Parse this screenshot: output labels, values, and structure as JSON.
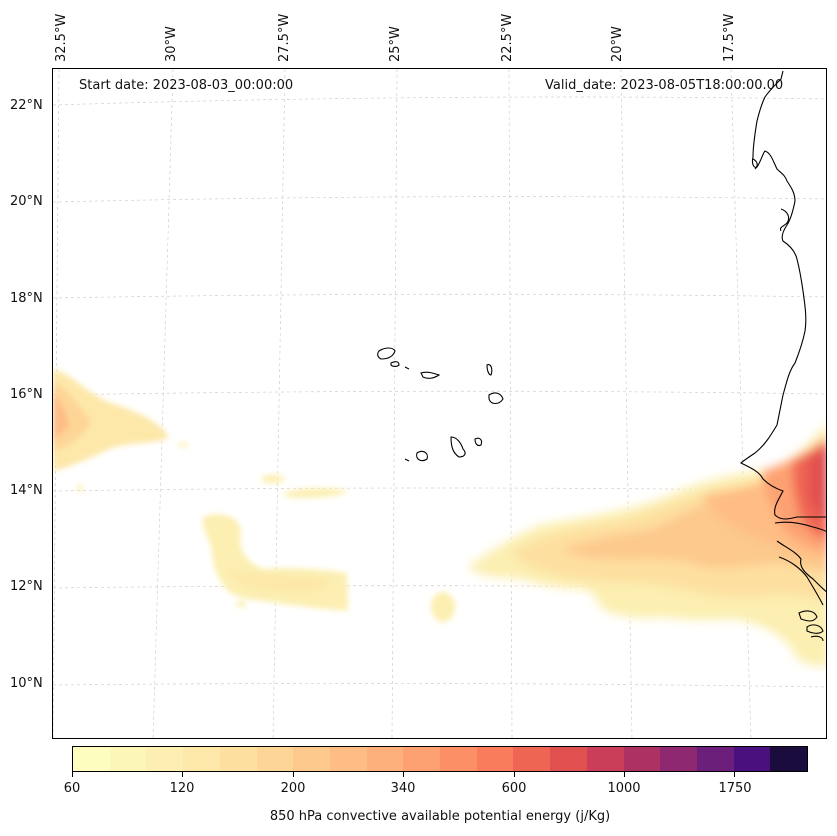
{
  "map": {
    "start_date": "Start date: 2023-08-03_00:00:00",
    "valid_date": "Valid_date: 2023-08-05T18:00:00.00",
    "longitude_labels": [
      "32.5°W",
      "30°W",
      "27.5°W",
      "25°W",
      "22.5°W",
      "20°W",
      "17.5°W"
    ],
    "latitude_labels": [
      "22°N",
      "20°N",
      "18°N",
      "16°N",
      "14°N",
      "12°N",
      "10°N"
    ],
    "gridlines": true,
    "coastline_color": "#000000",
    "background_color": "#ffffff"
  },
  "colorbar": {
    "title": "850 hPa convective available potential energy (j/Kg)",
    "tick_labels": [
      "60",
      "120",
      "200",
      "340",
      "600",
      "1000",
      "1750"
    ],
    "colors": [
      "#fcfdbf",
      "#fcf6b8",
      "#fcefb1",
      "#fde8a9",
      "#fde0a0",
      "#fdd597",
      "#fec98d",
      "#febd84",
      "#fdb07b",
      "#fda172",
      "#fd8f67",
      "#f97c5d",
      "#ef6553",
      "#e0504f",
      "#cb3e5a",
      "#ae3163",
      "#8e2870",
      "#6b1e7a",
      "#4a117e",
      "#1a0c3d"
    ]
  }
}
